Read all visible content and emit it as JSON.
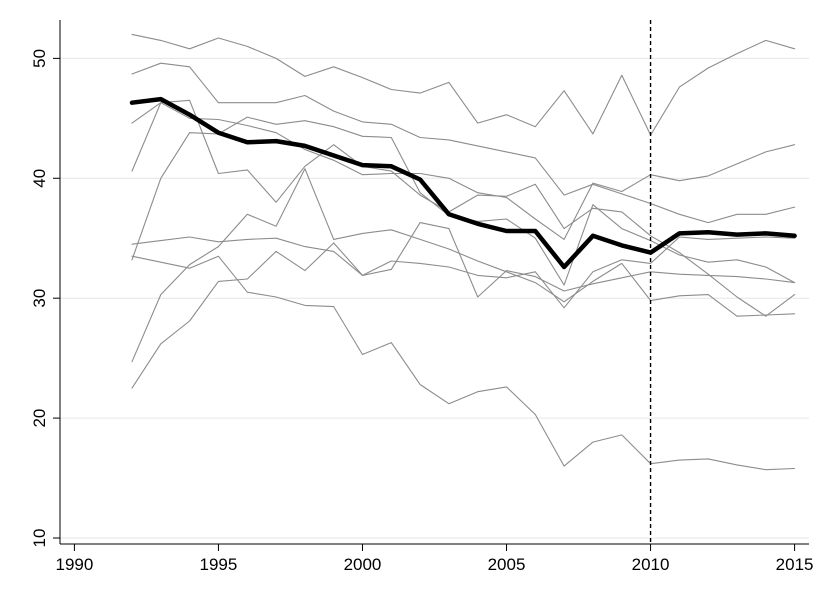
{
  "chart_data": {
    "type": "line",
    "title": "",
    "xlabel": "",
    "ylabel": "",
    "xlim": [
      1989.5,
      2015.5
    ],
    "ylim": [
      9.5,
      53.2
    ],
    "x_ticks": [
      1990,
      1995,
      2000,
      2005,
      2010,
      2015
    ],
    "y_ticks": [
      10,
      20,
      30,
      40,
      50
    ],
    "grid": "horizontal at y ticks",
    "reference_line": {
      "x": 2010,
      "style": "dashed"
    },
    "x": [
      1992,
      1993,
      1994,
      1995,
      1996,
      1997,
      1998,
      1999,
      2000,
      2001,
      2002,
      2003,
      2004,
      2005,
      2006,
      2007,
      2008,
      2009,
      2010,
      2011,
      2012,
      2013,
      2014,
      2015
    ],
    "series": [
      {
        "emphasis": true,
        "color": "#000000",
        "values": [
          46.3,
          46.6,
          45.3,
          43.8,
          43.0,
          43.1,
          42.7,
          41.9,
          41.1,
          41.0,
          39.9,
          37.0,
          36.2,
          35.6,
          35.6,
          32.6,
          35.2,
          34.4,
          33.8,
          35.4,
          35.5,
          35.3,
          35.4,
          35.2
        ]
      },
      {
        "emphasis": false,
        "color": "#8c8c8c",
        "values": [
          52.0,
          51.5,
          50.8,
          51.7,
          51.0,
          50.0,
          48.5,
          49.3,
          48.4,
          47.4,
          47.1,
          48.0,
          44.6,
          45.3,
          44.3,
          47.3,
          43.7,
          48.6,
          43.6,
          47.6,
          49.2,
          50.4,
          51.5,
          50.8
        ]
      },
      {
        "emphasis": false,
        "color": "#8c8c8c",
        "values": [
          48.7,
          49.6,
          49.3,
          46.3,
          46.3,
          46.3,
          46.9,
          45.6,
          44.7,
          44.5,
          43.4,
          43.2,
          42.7,
          42.2,
          41.7,
          38.6,
          39.5,
          38.7,
          37.9,
          37.0,
          36.3,
          37.0,
          37.0,
          37.6
        ]
      },
      {
        "emphasis": false,
        "color": "#8c8c8c",
        "values": [
          40.6,
          46.3,
          46.5,
          40.4,
          40.7,
          38.0,
          41.0,
          42.8,
          41.0,
          40.6,
          38.6,
          37.2,
          38.6,
          38.5,
          39.5,
          35.8,
          37.5,
          37.2,
          35.2,
          33.8,
          32.0,
          30.1,
          28.5,
          30.3
        ]
      },
      {
        "emphasis": false,
        "color": "#8c8c8c",
        "values": [
          44.6,
          46.3,
          45.0,
          44.9,
          44.4,
          43.8,
          42.4,
          41.5,
          40.3,
          40.4,
          40.4,
          40.0,
          38.8,
          38.4,
          36.6,
          34.9,
          39.6,
          38.9,
          40.3,
          39.8,
          40.2,
          41.2,
          42.2,
          42.8
        ]
      },
      {
        "emphasis": false,
        "color": "#8c8c8c",
        "values": [
          33.2,
          40.0,
          43.8,
          43.7,
          45.1,
          44.5,
          44.8,
          44.3,
          43.5,
          43.4,
          38.8,
          36.9,
          36.4,
          36.6,
          35.0,
          31.1,
          37.8,
          35.8,
          34.8,
          33.6,
          33.0,
          33.2,
          32.6,
          31.3
        ]
      },
      {
        "emphasis": false,
        "color": "#8c8c8c",
        "values": [
          34.5,
          34.8,
          35.1,
          34.7,
          34.9,
          35.0,
          34.3,
          33.9,
          31.9,
          32.4,
          36.3,
          35.8,
          30.1,
          32.3,
          31.8,
          30.6,
          31.2,
          31.7,
          32.2,
          32.0,
          31.9,
          31.8,
          31.6,
          31.3
        ]
      },
      {
        "emphasis": false,
        "color": "#8c8c8c",
        "values": [
          33.5,
          33.0,
          32.5,
          33.5,
          30.5,
          30.1,
          29.4,
          29.3,
          25.3,
          26.3,
          22.8,
          21.2,
          22.2,
          22.6,
          20.3,
          16.0,
          18.0,
          18.6,
          16.2,
          16.5,
          16.6,
          16.1,
          15.7,
          15.8
        ]
      },
      {
        "emphasis": false,
        "color": "#8c8c8c",
        "values": [
          24.7,
          30.3,
          32.8,
          34.3,
          37.0,
          36.0,
          40.8,
          34.9,
          35.4,
          35.7,
          34.9,
          34.1,
          33.1,
          32.2,
          31.3,
          29.7,
          31.4,
          32.9,
          29.8,
          30.2,
          30.3,
          28.5,
          28.6,
          28.7
        ]
      },
      {
        "emphasis": false,
        "color": "#8c8c8c",
        "values": [
          22.5,
          26.2,
          28.1,
          31.4,
          31.6,
          33.9,
          32.3,
          34.6,
          31.9,
          33.1,
          32.9,
          32.6,
          31.9,
          31.7,
          32.2,
          29.2,
          32.2,
          33.2,
          32.9,
          35.1,
          34.9,
          35.0,
          35.1,
          35.0
        ]
      }
    ]
  }
}
